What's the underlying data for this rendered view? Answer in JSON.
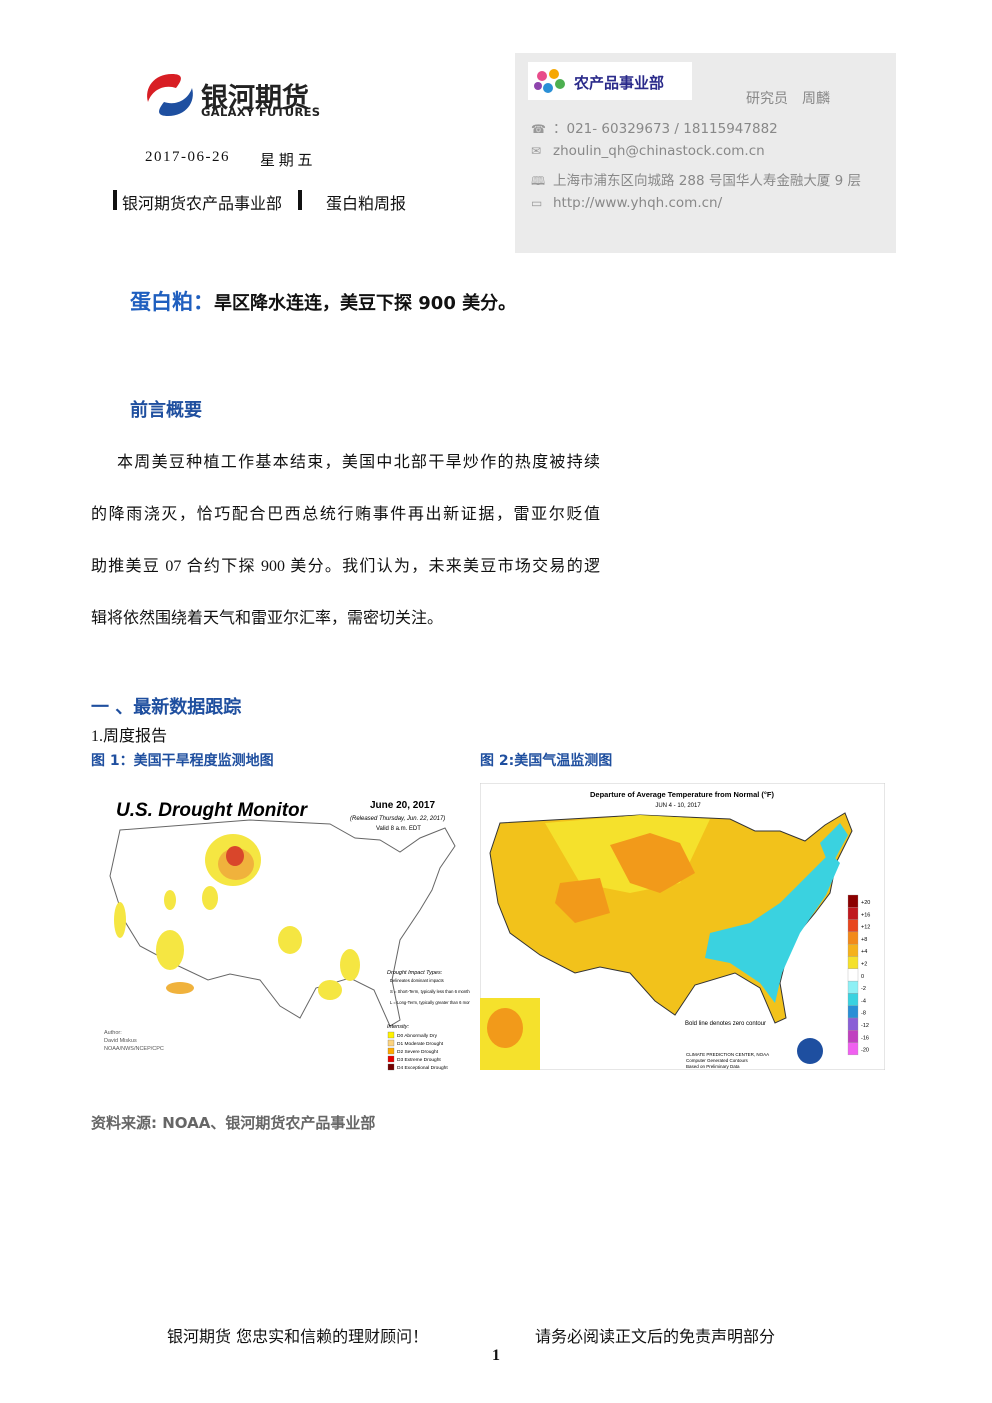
{
  "header": {
    "logo_cn": "银河期货",
    "logo_en": "GALAXY FUTURES",
    "date": "2017-06-26",
    "weekday": "星 期 五",
    "department": "银河期货农产品事业部",
    "report": "蛋白粕周报"
  },
  "contact": {
    "badge": "农产品事业部",
    "researcher": "研究员　周麟",
    "phone": "：021- 60329673 / 18115947882",
    "email": "zhoulin_qh@chinastock.com.cn",
    "address": "上海市浦东区向城路 288 号国华人寿金融大厦 9 层",
    "url": "http://www.yhqh.com.cn/"
  },
  "headline": {
    "label": "蛋白粕：",
    "text": "旱区降水连连，美豆下探 900 美分。"
  },
  "intro": {
    "heading": "前言概要",
    "lines": [
      "本周美豆种植工作基本结束，美国中北部干旱炒作的热度被持续",
      "的降雨浇灭，恰巧配合巴西总统行贿事件再出新证据，雷亚尔贬值",
      "助推美豆 07 合约下探 900 美分。我们认为，未来美豆市场交易的逻",
      "辑将依然围绕着天气和雷亚尔汇率，需密切关注。"
    ]
  },
  "section": {
    "heading": "一 、最新数据跟踪",
    "subheading": "1.周度报告"
  },
  "figures": [
    {
      "caption": "图 1：美国干旱程度监测地图",
      "title": "U.S. Drought Monitor",
      "date": "June 20, 2017",
      "released": "(Released Thursday, Jun. 22, 2017)",
      "valid": "Valid 8 a.m. EDT",
      "impact_heading": "Drought Impact Types:",
      "impacts": [
        "Delineates dominant impacts",
        "S = Short-Term, typically less than 6 months (e.g. agriculture, grasslands)",
        "L = Long-Term, typically greater than 6 months (e.g. hydrology, ecology)"
      ],
      "intensity_heading": "Intensity:",
      "intensity": [
        "D0 Abnormally Dry",
        "D1 Moderate Drought",
        "D2 Severe Drought",
        "D3 Extreme Drought",
        "D4 Exceptional Drought"
      ],
      "author_heading": "Author:",
      "author": "David Miskus",
      "agency": "NOAA/NWS/NCEP/CPC"
    },
    {
      "caption": "图 2:美国气温监测图",
      "title": "Departure of Average Temperature from Normal (°F)",
      "date": "JUN 4 - 10, 2017",
      "scale": [
        "+20",
        "+16",
        "+12",
        "+8",
        "+4",
        "+2",
        "0",
        "-2",
        "-4",
        "-8",
        "-12",
        "-16",
        "-20"
      ],
      "note": "Bold line denotes zero contour",
      "credit": [
        "CLIMATE PREDICTION CENTER, NOAA",
        "Computer Generated Contours",
        "Based on Preliminary Data"
      ]
    }
  ],
  "source": "资料来源: NOAA、银河期货农产品事业部",
  "footer": {
    "left": "银河期货  您忠实和信赖的理财顾问！",
    "right": "请务必阅读正文后的免责声明部分",
    "page": "1"
  }
}
